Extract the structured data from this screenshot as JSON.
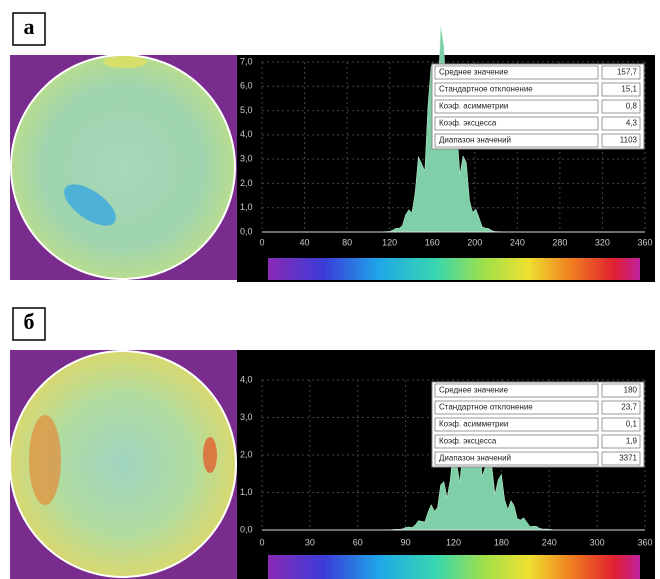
{
  "panels": [
    {
      "label": "а",
      "x_ticks": [
        "0",
        "40",
        "80",
        "120",
        "160",
        "200",
        "240",
        "280",
        "320",
        "360"
      ],
      "y_ticks": [
        "7,0",
        "6,0",
        "5,0",
        "4,0",
        "3,0",
        "2,0",
        "1,0",
        "0,0"
      ],
      "stats": [
        {
          "name": "Среднее значение",
          "value": "157,7"
        },
        {
          "name": "Стандартное отклонение",
          "value": "15,1"
        },
        {
          "name": "Коэф. асимметрии",
          "value": "0,8"
        },
        {
          "name": "Коэф. эксцесса",
          "value": "4,3"
        },
        {
          "name": "Диапазон значений",
          "value": "1103"
        }
      ]
    },
    {
      "label": "б",
      "x_ticks": [
        "0",
        "30",
        "60",
        "90",
        "120",
        "180",
        "240",
        "300",
        "360"
      ],
      "y_ticks": [
        "4,0",
        "3,0",
        "2,0",
        "1,0",
        "0,0"
      ],
      "stats": [
        {
          "name": "Среднее значение",
          "value": "180"
        },
        {
          "name": "Стандартное отклонение",
          "value": "23,7"
        },
        {
          "name": "Коэф. асимметрии",
          "value": "0,1"
        },
        {
          "name": "Коэф. эксцесса",
          "value": "1,9"
        },
        {
          "name": "Диапазон значений",
          "value": "3371"
        }
      ]
    }
  ]
}
